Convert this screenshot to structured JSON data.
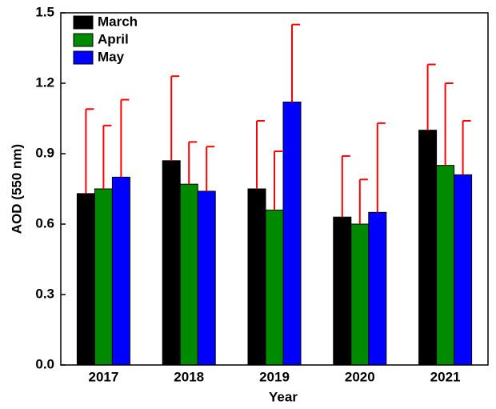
{
  "chart_data": {
    "type": "bar",
    "xlabel": "Year",
    "ylabel": "AOD (550 nm)",
    "categories": [
      "2017",
      "2018",
      "2019",
      "2020",
      "2021"
    ],
    "series": [
      {
        "name": "March",
        "color": "#000000",
        "values": [
          0.73,
          0.87,
          0.75,
          0.63,
          1.0
        ],
        "errors": [
          0.36,
          0.36,
          0.29,
          0.26,
          0.28
        ]
      },
      {
        "name": "April",
        "color": "#008a00",
        "values": [
          0.75,
          0.77,
          0.66,
          0.6,
          0.85
        ],
        "errors": [
          0.27,
          0.18,
          0.25,
          0.19,
          0.35
        ]
      },
      {
        "name": "May",
        "color": "#0000ff",
        "values": [
          0.8,
          0.74,
          1.12,
          0.65,
          0.81
        ],
        "errors": [
          0.33,
          0.19,
          0.33,
          0.38,
          0.23
        ]
      }
    ],
    "error_color": "#ff0000",
    "ylim": [
      0,
      1.5
    ],
    "yticks": [
      {
        "value": 0,
        "label": "0.0"
      },
      0.3,
      0.6,
      0.9,
      1.2,
      1.5
    ],
    "legend": "top-left"
  }
}
